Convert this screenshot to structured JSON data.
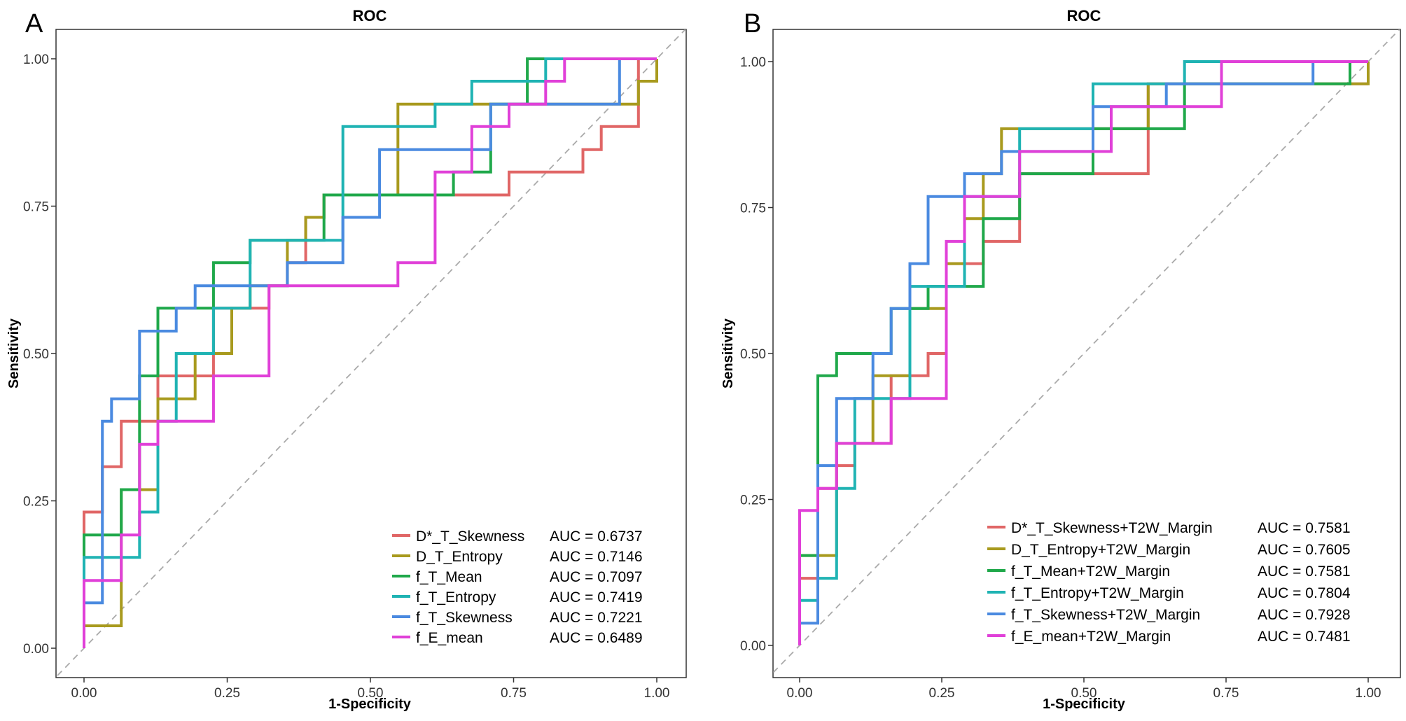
{
  "chart_data": [
    {
      "type": "line",
      "panel_label": "A",
      "title": "ROC",
      "xlabel": "1-Specificity",
      "ylabel": "Sensitivity",
      "xlim": [
        0,
        1
      ],
      "ylim": [
        0,
        1
      ],
      "xticks": [
        "0.00",
        "0.25",
        "0.50",
        "0.75",
        "1.00"
      ],
      "yticks": [
        "0.00",
        "0.25",
        "0.50",
        "0.75",
        "1.00"
      ],
      "reference_line": "diagonal",
      "legend_position": "bottom-right",
      "series": [
        {
          "name": "D*_T_Skewness",
          "auc": "AUC = 0.6737",
          "color": "#e06666",
          "x": [
            0,
            0,
            0.032,
            0.032,
            0.065,
            0.065,
            0.129,
            0.129,
            0.226,
            0.226,
            0.323,
            0.323,
            0.355,
            0.355,
            0.387,
            0.387,
            0.419,
            0.419,
            0.452,
            0.452,
            0.613,
            0.613,
            0.742,
            0.742,
            0.871,
            0.871,
            0.903,
            0.903,
            0.968,
            0.968,
            1.0
          ],
          "y": [
            0,
            0.231,
            0.231,
            0.308,
            0.308,
            0.385,
            0.385,
            0.462,
            0.462,
            0.577,
            0.577,
            0.615,
            0.615,
            0.654,
            0.654,
            0.731,
            0.731,
            0.769,
            0.769,
            0.769,
            0.769,
            0.769,
            0.769,
            0.808,
            0.808,
            0.846,
            0.846,
            0.885,
            0.885,
            1.0,
            1.0
          ]
        },
        {
          "name": "D_T_Entropy",
          "auc": "AUC = 0.7146",
          "color": "#a89a1e",
          "x": [
            0,
            0,
            0.065,
            0.065,
            0.129,
            0.129,
            0.194,
            0.194,
            0.258,
            0.258,
            0.29,
            0.29,
            0.355,
            0.355,
            0.387,
            0.387,
            0.419,
            0.419,
            0.548,
            0.548,
            0.968,
            0.968,
            1.0,
            1.0
          ],
          "y": [
            0,
            0.038,
            0.038,
            0.269,
            0.269,
            0.423,
            0.423,
            0.5,
            0.5,
            0.577,
            0.577,
            0.615,
            0.615,
            0.692,
            0.692,
            0.731,
            0.731,
            0.769,
            0.769,
            0.923,
            0.923,
            0.962,
            0.962,
            1.0
          ]
        },
        {
          "name": "f_T_Mean",
          "auc": "AUC = 0.7097",
          "color": "#1fa84a",
          "x": [
            0,
            0,
            0.065,
            0.065,
            0.097,
            0.097,
            0.129,
            0.129,
            0.226,
            0.226,
            0.29,
            0.29,
            0.419,
            0.419,
            0.548,
            0.548,
            0.645,
            0.645,
            0.71,
            0.71,
            0.774,
            0.774,
            1.0
          ],
          "y": [
            0,
            0.192,
            0.192,
            0.269,
            0.269,
            0.462,
            0.462,
            0.577,
            0.577,
            0.654,
            0.654,
            0.692,
            0.692,
            0.769,
            0.769,
            0.769,
            0.769,
            0.808,
            0.808,
            0.923,
            0.923,
            1.0,
            1.0
          ]
        },
        {
          "name": "f_T_Entropy",
          "auc": "AUC = 0.7419",
          "color": "#1fb3b3",
          "x": [
            0,
            0,
            0.097,
            0.097,
            0.129,
            0.129,
            0.161,
            0.161,
            0.226,
            0.226,
            0.29,
            0.29,
            0.452,
            0.452,
            0.613,
            0.613,
            0.677,
            0.677,
            0.806,
            0.806,
            1.0
          ],
          "y": [
            0,
            0.154,
            0.154,
            0.231,
            0.231,
            0.385,
            0.385,
            0.5,
            0.5,
            0.577,
            0.577,
            0.692,
            0.692,
            0.885,
            0.885,
            0.923,
            0.923,
            0.962,
            0.962,
            1.0,
            1.0
          ]
        },
        {
          "name": "f_T_Skewness",
          "auc": "AUC = 0.7221",
          "color": "#4a8ae0",
          "x": [
            0,
            0,
            0.032,
            0.032,
            0.048,
            0.048,
            0.097,
            0.097,
            0.161,
            0.161,
            0.194,
            0.194,
            0.355,
            0.355,
            0.452,
            0.452,
            0.516,
            0.516,
            0.581,
            0.581,
            0.71,
            0.71,
            0.935,
            0.935,
            1.0
          ],
          "y": [
            0,
            0.077,
            0.077,
            0.385,
            0.385,
            0.423,
            0.423,
            0.538,
            0.538,
            0.577,
            0.577,
            0.615,
            0.615,
            0.654,
            0.654,
            0.731,
            0.731,
            0.846,
            0.846,
            0.846,
            0.846,
            0.923,
            0.923,
            1.0,
            1.0
          ]
        },
        {
          "name": "f_E_mean",
          "auc": "AUC = 0.6489",
          "color": "#e040d8",
          "x": [
            0,
            0,
            0.065,
            0.065,
            0.097,
            0.097,
            0.129,
            0.129,
            0.226,
            0.226,
            0.323,
            0.323,
            0.548,
            0.548,
            0.613,
            0.613,
            0.677,
            0.677,
            0.742,
            0.742,
            0.806,
            0.806,
            0.839,
            0.839,
            1.0
          ],
          "y": [
            0,
            0.115,
            0.115,
            0.192,
            0.192,
            0.346,
            0.346,
            0.385,
            0.385,
            0.462,
            0.462,
            0.615,
            0.615,
            0.654,
            0.654,
            0.808,
            0.808,
            0.885,
            0.885,
            0.923,
            0.923,
            0.962,
            0.962,
            1.0,
            1.0
          ]
        }
      ]
    },
    {
      "type": "line",
      "panel_label": "B",
      "title": "ROC",
      "xlabel": "1-Specificity",
      "ylabel": "Sensitivity",
      "xlim": [
        0,
        1
      ],
      "ylim": [
        0,
        1
      ],
      "xticks": [
        "0.00",
        "0.25",
        "0.50",
        "0.75",
        "1.00"
      ],
      "yticks": [
        "0.00",
        "0.25",
        "0.50",
        "0.75",
        "1.00"
      ],
      "reference_line": "diagonal",
      "legend_position": "bottom-right",
      "series": [
        {
          "name": "D*_T_Skewness+T2W_Margin",
          "auc": "AUC = 0.7581",
          "color": "#e06666",
          "x": [
            0,
            0,
            0.032,
            0.032,
            0.065,
            0.065,
            0.097,
            0.097,
            0.161,
            0.161,
            0.226,
            0.226,
            0.258,
            0.258,
            0.323,
            0.323,
            0.387,
            0.387,
            0.613,
            0.613,
            1.0
          ],
          "y": [
            0,
            0.115,
            0.115,
            0.269,
            0.269,
            0.308,
            0.308,
            0.346,
            0.346,
            0.462,
            0.462,
            0.5,
            0.5,
            0.654,
            0.654,
            0.692,
            0.692,
            0.808,
            0.808,
            0.962,
            0.962
          ]
        },
        {
          "name": "D_T_Entropy+T2W_Margin",
          "auc": "AUC = 0.7605",
          "color": "#a89a1e",
          "x": [
            0,
            0,
            0.065,
            0.065,
            0.129,
            0.129,
            0.194,
            0.194,
            0.258,
            0.258,
            0.29,
            0.29,
            0.323,
            0.323,
            0.355,
            0.355,
            0.613,
            0.613,
            1.0,
            1.0
          ],
          "y": [
            0,
            0.154,
            0.154,
            0.346,
            0.346,
            0.462,
            0.462,
            0.577,
            0.577,
            0.654,
            0.654,
            0.731,
            0.731,
            0.808,
            0.808,
            0.885,
            0.885,
            0.962,
            0.962,
            1.0
          ]
        },
        {
          "name": "f_T_Mean+T2W_Margin",
          "auc": "AUC = 0.7581",
          "color": "#1fa84a",
          "x": [
            0,
            0,
            0.032,
            0.032,
            0.065,
            0.065,
            0.161,
            0.161,
            0.226,
            0.226,
            0.323,
            0.323,
            0.387,
            0.387,
            0.516,
            0.516,
            0.677,
            0.677,
            0.968,
            0.968,
            1.0
          ],
          "y": [
            0,
            0.154,
            0.154,
            0.462,
            0.462,
            0.5,
            0.5,
            0.577,
            0.577,
            0.615,
            0.615,
            0.731,
            0.731,
            0.808,
            0.808,
            0.885,
            0.885,
            0.962,
            0.962,
            1.0,
            1.0
          ]
        },
        {
          "name": "f_T_Entropy+T2W_Margin",
          "auc": "AUC = 0.7804",
          "color": "#1fb3b3",
          "x": [
            0,
            0,
            0.032,
            0.032,
            0.065,
            0.065,
            0.097,
            0.097,
            0.194,
            0.194,
            0.29,
            0.29,
            0.387,
            0.387,
            0.516,
            0.516,
            0.677,
            0.677,
            1.0
          ],
          "y": [
            0,
            0.077,
            0.077,
            0.115,
            0.115,
            0.269,
            0.269,
            0.423,
            0.423,
            0.615,
            0.615,
            0.769,
            0.769,
            0.885,
            0.885,
            0.962,
            0.962,
            1.0,
            1.0
          ]
        },
        {
          "name": "f_T_Skewness+T2W_Margin",
          "auc": "AUC = 0.7928",
          "color": "#4a8ae0",
          "x": [
            0,
            0,
            0.032,
            0.032,
            0.065,
            0.065,
            0.129,
            0.129,
            0.161,
            0.161,
            0.194,
            0.194,
            0.226,
            0.226,
            0.29,
            0.29,
            0.355,
            0.355,
            0.516,
            0.516,
            0.645,
            0.645,
            0.903,
            0.903,
            1.0
          ],
          "y": [
            0,
            0.038,
            0.038,
            0.308,
            0.308,
            0.423,
            0.423,
            0.5,
            0.5,
            0.577,
            0.577,
            0.654,
            0.654,
            0.769,
            0.769,
            0.808,
            0.808,
            0.846,
            0.846,
            0.923,
            0.923,
            0.962,
            0.962,
            1.0,
            1.0
          ]
        },
        {
          "name": "f_E_mean+T2W_Margin",
          "auc": "AUC = 0.7481",
          "color": "#e040d8",
          "x": [
            0,
            0,
            0.032,
            0.032,
            0.065,
            0.065,
            0.161,
            0.161,
            0.258,
            0.258,
            0.29,
            0.29,
            0.387,
            0.387,
            0.548,
            0.548,
            0.742,
            0.742,
            1.0
          ],
          "y": [
            0,
            0.231,
            0.231,
            0.269,
            0.269,
            0.346,
            0.346,
            0.423,
            0.423,
            0.692,
            0.692,
            0.769,
            0.769,
            0.846,
            0.846,
            0.923,
            0.923,
            1.0,
            1.0
          ]
        }
      ]
    }
  ]
}
